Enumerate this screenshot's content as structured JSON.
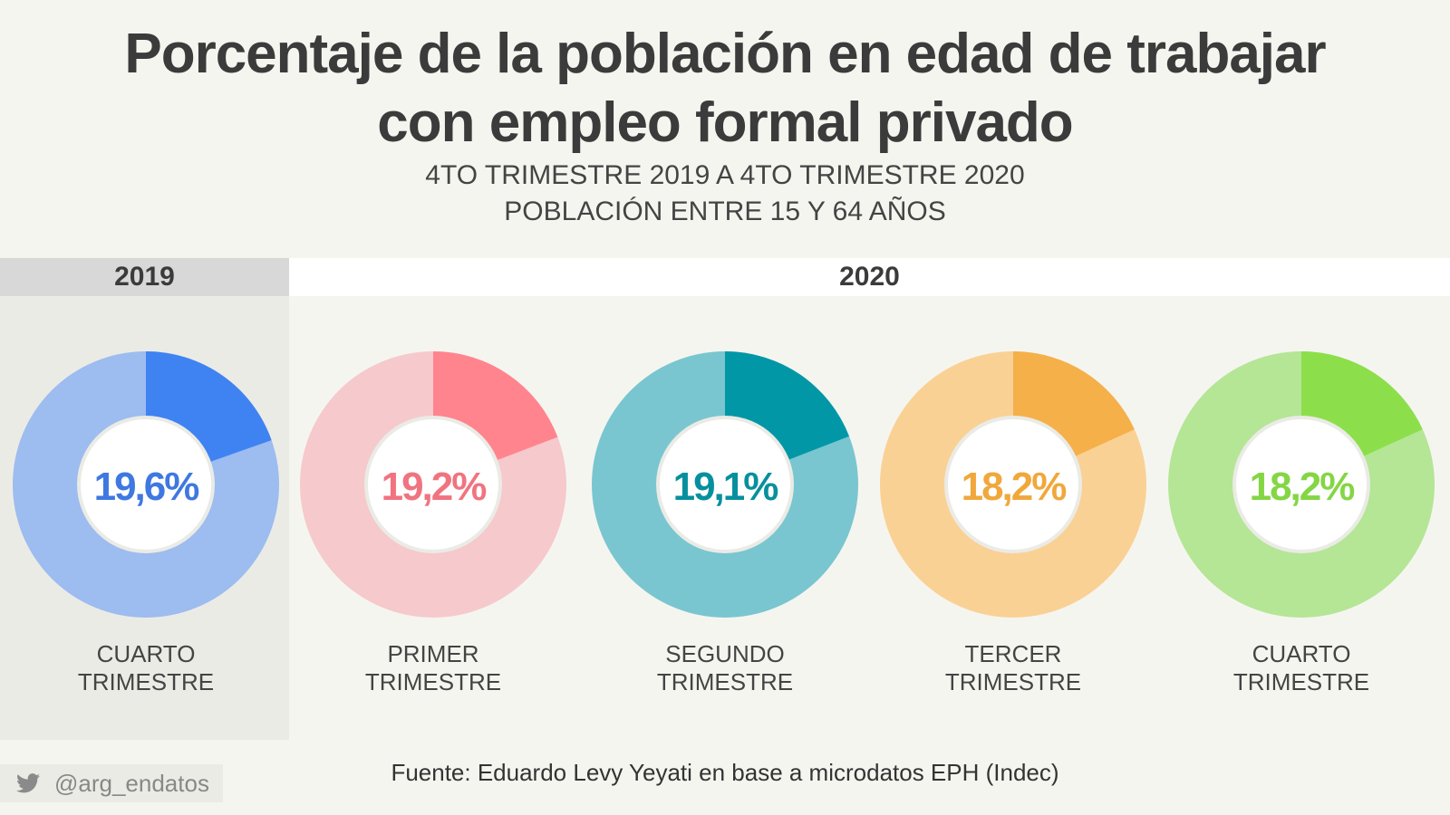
{
  "title": {
    "line1": "Porcentaje de la población en edad de trabajar",
    "line2": "con empleo formal privado"
  },
  "subtitle": {
    "line1": "4TO TRIMESTRE 2019 A 4TO TRIMESTRE 2020",
    "line2": "POBLACIÓN ENTRE 15 Y 64 AÑOS"
  },
  "years": {
    "y2019": "2019",
    "y2020": "2020"
  },
  "footer": {
    "source": "Fuente: Eduardo Levy Yeyati en base a microdatos EPH (Indec)",
    "twitter_handle": "@arg_endatos",
    "twitter_icon": "twitter-bird-icon"
  },
  "chart_data": {
    "type": "pie",
    "series": [
      {
        "period_line1": "CUARTO",
        "period_line2": "TRIMESTRE",
        "year": "2019",
        "value": 19.6,
        "label": "19,6%",
        "color_main": "#3f83f2",
        "color_light": "#9dbcef",
        "color_text": "#3f78e0"
      },
      {
        "period_line1": "PRIMER",
        "period_line2": "TRIMESTRE",
        "year": "2020",
        "value": 19.2,
        "label": "19,2%",
        "color_main": "#ff848e",
        "color_light": "#f6c9cc",
        "color_text": "#f07480"
      },
      {
        "period_line1": "SEGUNDO",
        "period_line2": "TRIMESTRE",
        "year": "2020",
        "value": 19.1,
        "label": "19,1%",
        "color_main": "#0297a6",
        "color_light": "#79c6d0",
        "color_text": "#06909e"
      },
      {
        "period_line1": "TERCER",
        "period_line2": "TRIMESTRE",
        "year": "2020",
        "value": 18.2,
        "label": "18,2%",
        "color_main": "#f5b04a",
        "color_light": "#fad194",
        "color_text": "#f0a83c"
      },
      {
        "period_line1": "CUARTO",
        "period_line2": "TRIMESTRE",
        "year": "2020",
        "value": 18.2,
        "label": "18,2%",
        "color_main": "#8cdf4b",
        "color_light": "#b4e695",
        "color_text": "#84d645"
      }
    ]
  }
}
